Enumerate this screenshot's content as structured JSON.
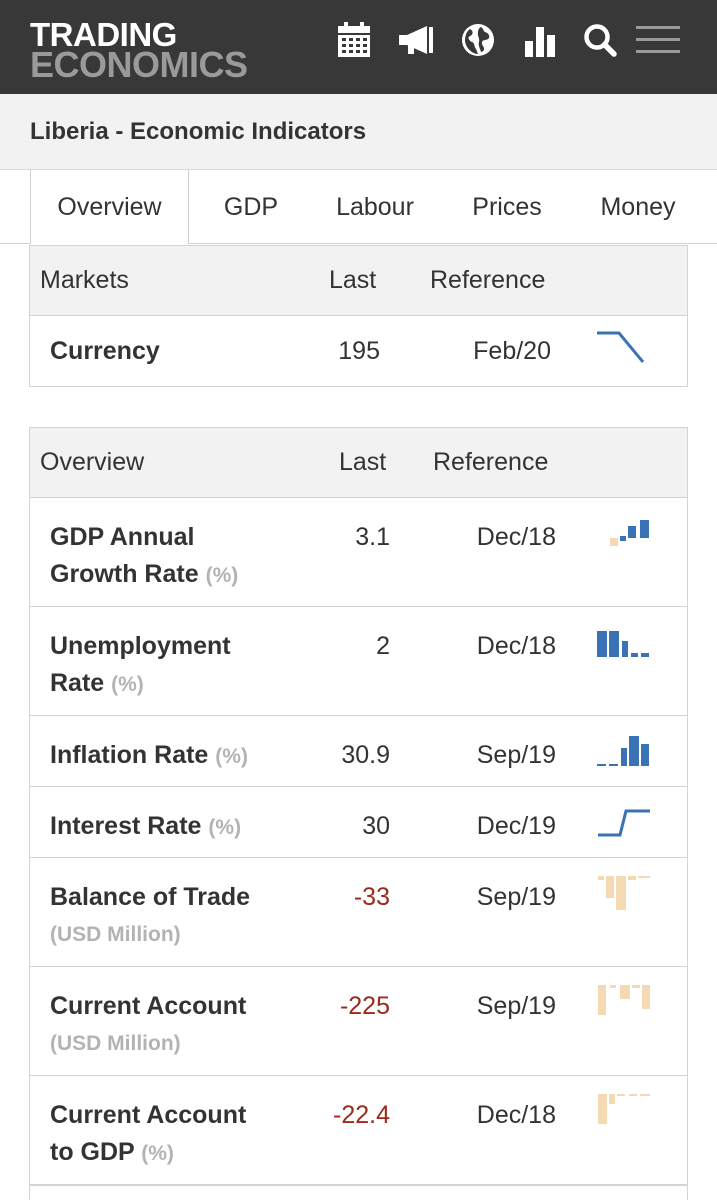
{
  "header": {
    "logo_line1": "TRADING",
    "logo_line2": "ECONOMICS",
    "icons": [
      "calendar-icon",
      "megaphone-icon",
      "globe-icon",
      "bar-chart-icon",
      "search-icon",
      "menu-icon"
    ]
  },
  "page": {
    "title": "Liberia - Economic Indicators"
  },
  "tabs": [
    {
      "label": "Overview",
      "active": true
    },
    {
      "label": "GDP"
    },
    {
      "label": "Labour"
    },
    {
      "label": "Prices"
    },
    {
      "label": "Money"
    }
  ],
  "markets": {
    "header": {
      "name": "Markets",
      "last": "Last",
      "reference": "Reference"
    },
    "rows": [
      {
        "name": "Currency",
        "last": "195",
        "reference": "Feb/20"
      }
    ]
  },
  "overview": {
    "header": {
      "name": "Overview",
      "last": "Last",
      "reference": "Reference"
    },
    "rows": [
      {
        "name_1": "GDP Annual",
        "name_2": "Growth Rate",
        "unit": "(%)",
        "last": "3.1",
        "reference": "Dec/18"
      },
      {
        "name_1": "Unemployment",
        "name_2": "Rate",
        "unit": "(%)",
        "last": "2",
        "reference": "Dec/18"
      },
      {
        "name": "Inflation Rate",
        "unit": "(%)",
        "last": "30.9",
        "reference": "Sep/19"
      },
      {
        "name": "Interest Rate",
        "unit": "(%)",
        "last": "30",
        "reference": "Dec/19"
      },
      {
        "name": "Balance of Trade",
        "unit": "(USD Million)",
        "last": "-33",
        "reference": "Sep/19"
      },
      {
        "name": "Current Account",
        "unit": "(USD Million)",
        "last": "-225",
        "reference": "Sep/19"
      },
      {
        "name_1": "Current Account",
        "name_2": "to GDP",
        "unit": "(%)",
        "last": "-22.4",
        "reference": "Dec/18"
      }
    ]
  },
  "colors": {
    "header_bg": "#383838",
    "logo_primary": "#ffffff",
    "logo_secondary": "#9a9a9a",
    "spark_blue": "#3a73b5",
    "spark_orange": "#f4d9b3",
    "negative_value": "#9b2a1a"
  }
}
